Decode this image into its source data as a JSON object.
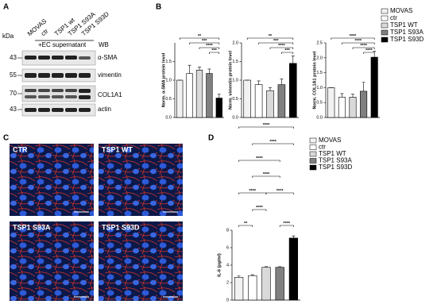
{
  "panel_a": {
    "label": "A",
    "unit": "kDa",
    "lanes": [
      "MOVAS",
      "ctr",
      "TSP1 wt",
      "TSP1 S93A",
      "TSP1 S93D"
    ],
    "treatment": "+EC supernatant",
    "method": "WB",
    "markers": [
      "43",
      "55",
      "70",
      "43"
    ],
    "proteins": [
      "α-SMA",
      "vimentin",
      "COL1A1",
      "actin"
    ]
  },
  "panel_b": {
    "label": "B"
  },
  "panel_c": {
    "label": "C",
    "images": [
      "CTR",
      "TSP1 WT",
      "TSP1 S93A",
      "TSP1 S93D"
    ]
  },
  "panel_d": {
    "label": "D"
  },
  "chart_data": [
    {
      "type": "bar",
      "y_label": "Norm. α-SMA protein level",
      "categories": [
        "MOVAS",
        "ctr",
        "TSP1 WT",
        "TSP1 S93A",
        "TSP1 S93D"
      ],
      "colors": [
        "#f2f2f2",
        "#ffffff",
        "#d9d9d9",
        "#808080",
        "#000000"
      ],
      "values": [
        1.0,
        1.18,
        1.27,
        1.18,
        0.52
      ],
      "errors": [
        0.0,
        0.22,
        0.08,
        0.12,
        0.1
      ],
      "ylim": [
        0,
        2.0
      ],
      "yticks": [
        {
          "value": 0,
          "label": "0.0"
        },
        0.5,
        {
          "value": 1,
          "label": "1.0"
        },
        1.5
      ],
      "significance": [
        "**",
        "***",
        "****",
        "***"
      ]
    },
    {
      "type": "bar",
      "y_label": "Norm. vimentin protein level",
      "colors": [
        "#f2f2f2",
        "#ffffff",
        "#d9d9d9",
        "#808080",
        "#000000"
      ],
      "values": [
        1.0,
        0.88,
        0.72,
        0.88,
        1.45
      ],
      "errors": [
        0.0,
        0.1,
        0.08,
        0.15,
        0.2
      ],
      "ylim": [
        0,
        2.0
      ],
      "yticks": [
        {
          "value": 0,
          "label": "0.0"
        },
        0.5,
        {
          "value": 1,
          "label": "1.0"
        },
        1.5,
        {
          "value": 2,
          "label": "2.0"
        }
      ],
      "significance": [
        "**",
        "***",
        "****",
        "***"
      ]
    },
    {
      "type": "bar",
      "y_label": "Norm. COL1A1 protein level",
      "colors": [
        "#f2f2f2",
        "#ffffff",
        "#d9d9d9",
        "#808080",
        "#000000"
      ],
      "values": [
        1.0,
        0.68,
        0.68,
        0.88,
        2.02
      ],
      "errors": [
        0.0,
        0.12,
        0.1,
        0.3,
        0.2
      ],
      "ylim": [
        0,
        2.5
      ],
      "yticks": [
        {
          "value": 0,
          "label": "0.0"
        },
        0.5,
        {
          "value": 1,
          "label": "1.0"
        },
        1.5,
        {
          "value": 2,
          "label": "2.0"
        },
        2.5
      ],
      "significance": [
        "****",
        "****",
        "****",
        "****"
      ]
    },
    {
      "type": "bar",
      "y_label": "IL-6 (pg/ml)",
      "categories": [
        "MOVAS",
        "ctr",
        "TSP1 WT",
        "TSP1 S93A",
        "TSP1 S93D"
      ],
      "colors": [
        "#f2f2f2",
        "#ffffff",
        "#d9d9d9",
        "#808080",
        "#000000"
      ],
      "values": [
        2.6,
        2.8,
        3.75,
        3.75,
        7.1
      ],
      "errors": [
        0.15,
        0.1,
        0.08,
        0.08,
        0.25
      ],
      "ylim": [
        0,
        8
      ],
      "yticks": [
        0,
        2,
        4,
        6,
        8
      ],
      "brackets": [
        {
          "pair": [
            0,
            1
          ],
          "label": "**"
        },
        {
          "pair": [
            3,
            4
          ],
          "label": "****"
        },
        {
          "pair": [
            1,
            2
          ],
          "label": "****"
        },
        {
          "pair": [
            0,
            2
          ],
          "label": "****"
        },
        {
          "pair": [
            2,
            4
          ],
          "label": "****"
        },
        {
          "pair": [
            1,
            3
          ],
          "label": "****"
        },
        {
          "pair": [
            0,
            3
          ],
          "label": "****"
        },
        {
          "pair": [
            1,
            4
          ],
          "label": "****"
        },
        {
          "pair": [
            0,
            4
          ],
          "label": "****"
        }
      ]
    }
  ]
}
